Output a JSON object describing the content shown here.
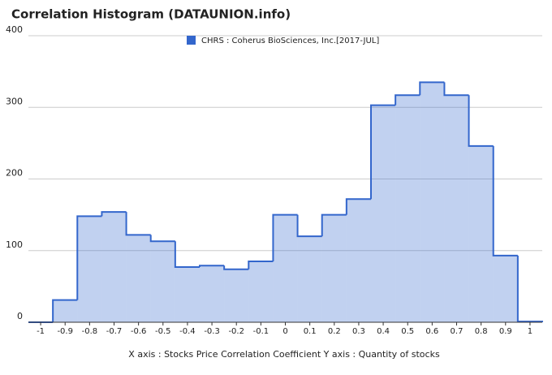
{
  "chart_data": {
    "type": "histogram",
    "title": "Correlation Histogram (DATAUNION.info)",
    "x_axis_label": "X axis : Stocks Price Correlation Coefficient  Y axis : Quantity of stocks",
    "series": [
      {
        "name": "CHRS : Coherus BioSciences, Inc.[2017-JUL]",
        "color": "#3366cc",
        "bins": [
          -1.05,
          -0.95,
          -0.85,
          -0.75,
          -0.65,
          -0.55,
          -0.45,
          -0.35,
          -0.25,
          -0.15,
          -0.05,
          0.05,
          0.15,
          0.25,
          0.35,
          0.45,
          0.55,
          0.65,
          0.75,
          0.85,
          0.95,
          1.05
        ],
        "values": [
          0,
          31,
          148,
          154,
          122,
          113,
          77,
          79,
          74,
          85,
          150,
          120,
          150,
          172,
          303,
          317,
          335,
          317,
          246,
          93,
          1
        ]
      }
    ],
    "xlim": [
      -1.05,
      1.05
    ],
    "ylim": [
      0,
      400
    ],
    "xticks": [
      -1,
      -0.9,
      -0.8,
      -0.7,
      -0.6,
      -0.5,
      -0.4,
      -0.3,
      -0.2,
      -0.1,
      0,
      0.1,
      0.2,
      0.3,
      0.4,
      0.5,
      0.6,
      0.7,
      0.8,
      0.9,
      1
    ],
    "yticks": [
      0,
      100,
      200,
      300,
      400
    ],
    "grid": true,
    "legend": "top"
  }
}
